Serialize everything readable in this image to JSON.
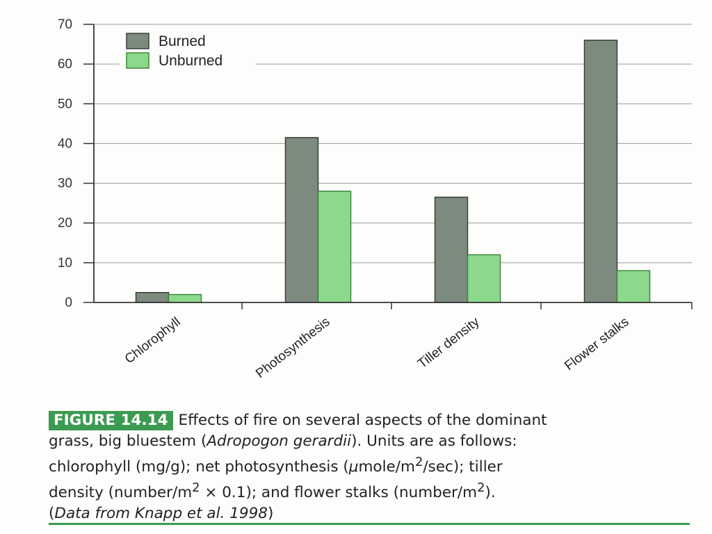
{
  "colors": {
    "burned": "#7d8a7e",
    "unburned": "#8ed88e",
    "bar_stroke": "#3a3f3a",
    "unburned_stroke": "#3a8a3a",
    "grid": "#9a9a9a",
    "caption_accent": "#3c9a52"
  },
  "chart_data": {
    "type": "bar",
    "categories": [
      "Chlorophyll",
      "Photosynthesis",
      "Tiller density",
      "Flower stalks"
    ],
    "series": [
      {
        "name": "Burned",
        "values": [
          2.5,
          41.5,
          26.5,
          66
        ]
      },
      {
        "name": "Unburned",
        "values": [
          2,
          28,
          12,
          8
        ]
      }
    ],
    "title": "",
    "xlabel": "",
    "ylabel": "",
    "ylim": [
      0,
      70
    ],
    "yticks": [
      0,
      10,
      20,
      30,
      40,
      50,
      60,
      70
    ],
    "grid": true,
    "legend_position": "top-left"
  },
  "caption": {
    "figure_label": "FIGURE 14.14",
    "line1": "Effects of fire on several aspects of the dominant",
    "line2_a": "grass, big bluestem (",
    "line2_italic": "Adropogon gerardii",
    "line2_b": "). Units are as follows:",
    "line3_a": "chlorophyll (mg/g); net photosynthesis (",
    "line3_mu": "μ",
    "line3_b": "mole/m",
    "line3_sup": "2",
    "line3_c": "/sec); tiller",
    "line4_a": "density (number/m",
    "line4_sup1": "2",
    "line4_b": " × 0.1); and flower stalks (number/m",
    "line4_sup2": "2",
    "line4_c": ").",
    "line5_a": "(",
    "line5_italic": "Data from Knapp et al. 1998",
    "line5_b": ")"
  }
}
